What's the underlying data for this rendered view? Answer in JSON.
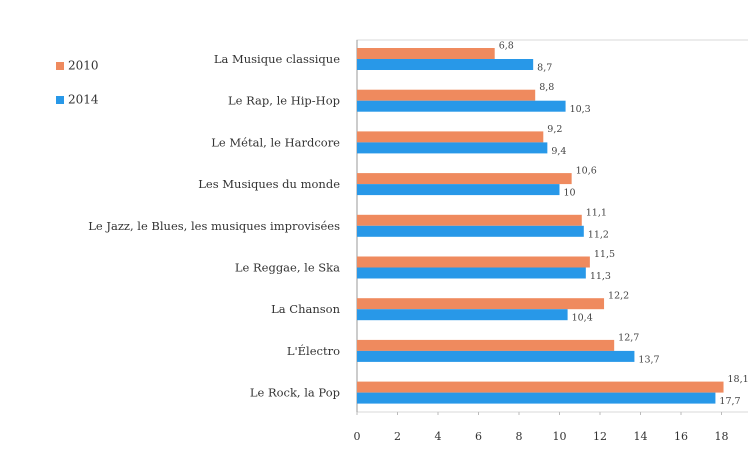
{
  "chart_data": {
    "type": "bar",
    "orientation": "horizontal",
    "categories": [
      "La Musique classique",
      "Le Rap, le Hip-Hop",
      "Le Métal, le Hardcore",
      "Les Musiques du monde",
      "Le Jazz, le Blues, les musiques improvisées",
      "Le Reggae, le Ska",
      "La Chanson",
      "L'Électro",
      "Le Rock, la Pop"
    ],
    "series": [
      {
        "name": "2010",
        "color": "#ef8a5e",
        "values": [
          6.8,
          8.8,
          9.2,
          10.6,
          11.1,
          11.5,
          12.2,
          12.7,
          18.1
        ],
        "value_labels": [
          "6,8",
          "8,8",
          "9,2",
          "10,6",
          "11,1",
          "11,5",
          "12,2",
          "12,7",
          "18,1"
        ]
      },
      {
        "name": "2014",
        "color": "#2898e8",
        "values": [
          8.7,
          10.3,
          9.4,
          10,
          11.2,
          11.3,
          10.4,
          13.7,
          17.7
        ],
        "value_labels": [
          "8,7",
          "10,3",
          "9,4",
          "10",
          "11,2",
          "11,3",
          "10,4",
          "13,7",
          "17,7"
        ]
      }
    ],
    "xlim": [
      0,
      20
    ],
    "xticks": [
      0,
      2,
      4,
      6,
      8,
      10,
      12,
      14,
      16,
      18,
      20
    ],
    "legend": "top-left"
  }
}
